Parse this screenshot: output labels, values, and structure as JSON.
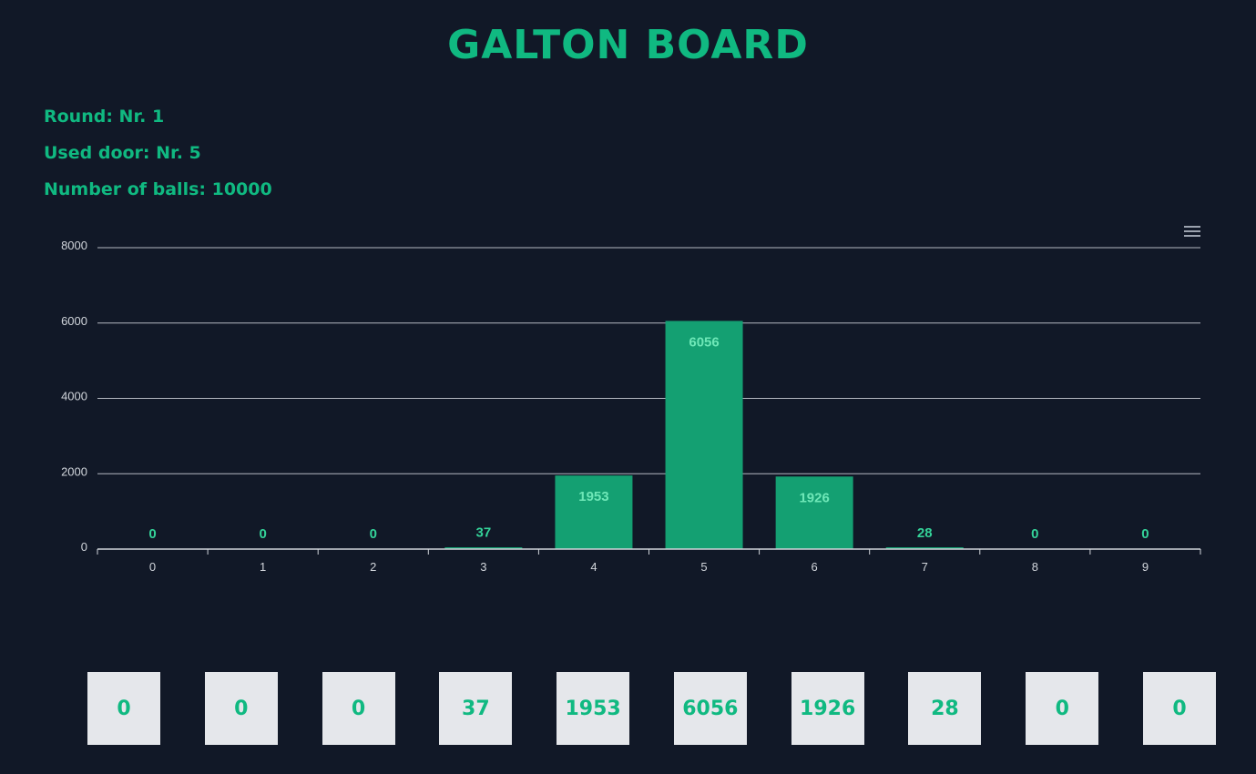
{
  "header": {
    "title": "GALTON BOARD"
  },
  "info": {
    "round": "Round: Nr. 1",
    "door": "Used door: Nr. 5",
    "balls": "Number of balls: 10000"
  },
  "colors": {
    "background": "#111827",
    "accent": "#10b981",
    "bar": "#14a072",
    "label_inside": "#6ee7b7",
    "label_outside": "#34d399",
    "box": "#e5e7eb"
  },
  "chart_data": {
    "type": "bar",
    "categories": [
      "0",
      "1",
      "2",
      "3",
      "4",
      "5",
      "6",
      "7",
      "8",
      "9"
    ],
    "values": [
      0,
      0,
      0,
      37,
      1953,
      6056,
      1926,
      28,
      0,
      0
    ],
    "yticks": [
      "0",
      "2000",
      "4000",
      "6000",
      "8000"
    ],
    "ylim": [
      0,
      8000
    ],
    "grid": true,
    "legend": "none",
    "menu_icon": "hamburger-menu-icon"
  },
  "counters": [
    {
      "value": "0"
    },
    {
      "value": "0"
    },
    {
      "value": "0"
    },
    {
      "value": "37"
    },
    {
      "value": "1953"
    },
    {
      "value": "6056"
    },
    {
      "value": "1926"
    },
    {
      "value": "28"
    },
    {
      "value": "0"
    },
    {
      "value": "0"
    }
  ]
}
